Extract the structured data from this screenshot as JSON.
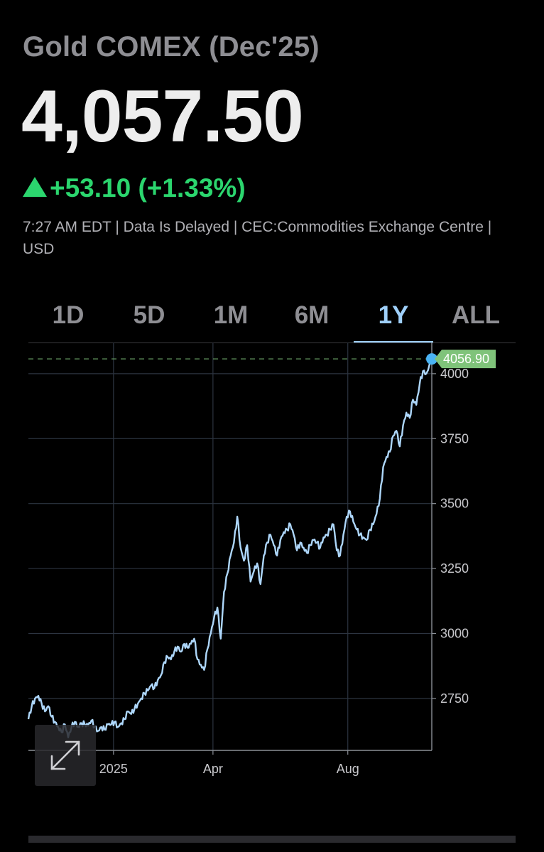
{
  "header": {
    "title": "Gold COMEX (Dec'25)",
    "price": "4,057.50",
    "change": "+53.10 (+1.33%)",
    "meta": "7:27 AM EDT | Data Is Delayed | CEC:Commodities Exchange Centre | USD"
  },
  "tabs": [
    {
      "label": "1D"
    },
    {
      "label": "5D"
    },
    {
      "label": "1M"
    },
    {
      "label": "6M"
    },
    {
      "label": "1Y",
      "active": true
    },
    {
      "label": "ALL"
    }
  ],
  "colors": {
    "positive": "#2bd66e",
    "line": "#aed7fb",
    "accent": "#9fd0fa",
    "marker": "#4ab3f4",
    "price_label_bg": "#7fc37a"
  },
  "chart_data": {
    "type": "line",
    "ylim": [
      2550,
      4120
    ],
    "yticks": [
      2750,
      3000,
      3250,
      3500,
      3750,
      4000
    ],
    "ytick_labels": [
      "2750",
      "3000",
      "3250",
      "3500",
      "3750",
      "4000"
    ],
    "x_ticks": [
      {
        "label": "2025",
        "date": "2025-01-01"
      },
      {
        "label": "Apr",
        "date": "2025-04-01"
      },
      {
        "label": "Aug",
        "date": "2025-08-01"
      }
    ],
    "xlim": [
      "2024-10-16",
      "2025-10-16"
    ],
    "last_value_label": "4056.90",
    "last_value": 4056.9,
    "grid": true,
    "series": [
      {
        "points": [
          [
            "2024-10-16",
            2670
          ],
          [
            "2024-10-19",
            2720
          ],
          [
            "2024-10-22",
            2750
          ],
          [
            "2024-10-25",
            2760
          ],
          [
            "2024-10-28",
            2730
          ],
          [
            "2024-10-31",
            2700
          ],
          [
            "2024-11-03",
            2720
          ],
          [
            "2024-11-06",
            2680
          ],
          [
            "2024-11-09",
            2660
          ],
          [
            "2024-11-12",
            2640
          ],
          [
            "2024-11-15",
            2620
          ],
          [
            "2024-11-18",
            2650
          ],
          [
            "2024-11-21",
            2600
          ],
          [
            "2024-11-24",
            2640
          ],
          [
            "2024-11-27",
            2660
          ],
          [
            "2024-11-30",
            2640
          ],
          [
            "2024-12-03",
            2655
          ],
          [
            "2024-12-06",
            2650
          ],
          [
            "2024-12-09",
            2645
          ],
          [
            "2024-12-12",
            2665
          ],
          [
            "2024-12-15",
            2640
          ],
          [
            "2024-12-18",
            2625
          ],
          [
            "2024-12-21",
            2640
          ],
          [
            "2024-12-24",
            2630
          ],
          [
            "2024-12-27",
            2650
          ],
          [
            "2024-12-30",
            2650
          ],
          [
            "2025-01-02",
            2660
          ],
          [
            "2025-01-05",
            2640
          ],
          [
            "2025-01-08",
            2655
          ],
          [
            "2025-01-11",
            2670
          ],
          [
            "2025-01-14",
            2700
          ],
          [
            "2025-01-17",
            2690
          ],
          [
            "2025-01-20",
            2710
          ],
          [
            "2025-01-23",
            2730
          ],
          [
            "2025-01-26",
            2750
          ],
          [
            "2025-01-29",
            2770
          ],
          [
            "2025-02-01",
            2780
          ],
          [
            "2025-02-04",
            2800
          ],
          [
            "2025-02-07",
            2790
          ],
          [
            "2025-02-10",
            2820
          ],
          [
            "2025-02-13",
            2840
          ],
          [
            "2025-02-16",
            2890
          ],
          [
            "2025-02-19",
            2910
          ],
          [
            "2025-02-22",
            2900
          ],
          [
            "2025-02-25",
            2930
          ],
          [
            "2025-02-28",
            2950
          ],
          [
            "2025-03-03",
            2930
          ],
          [
            "2025-03-06",
            2960
          ],
          [
            "2025-03-09",
            2945
          ],
          [
            "2025-03-12",
            2960
          ],
          [
            "2025-03-15",
            2980
          ],
          [
            "2025-03-18",
            2900
          ],
          [
            "2025-03-21",
            2880
          ],
          [
            "2025-03-24",
            2860
          ],
          [
            "2025-03-27",
            2940
          ],
          [
            "2025-03-30",
            3000
          ],
          [
            "2025-04-02",
            3060
          ],
          [
            "2025-04-05",
            3100
          ],
          [
            "2025-04-08",
            2980
          ],
          [
            "2025-04-11",
            3160
          ],
          [
            "2025-04-14",
            3230
          ],
          [
            "2025-04-17",
            3300
          ],
          [
            "2025-04-20",
            3350
          ],
          [
            "2025-04-23",
            3450
          ],
          [
            "2025-04-26",
            3330
          ],
          [
            "2025-04-29",
            3280
          ],
          [
            "2025-05-02",
            3340
          ],
          [
            "2025-05-05",
            3200
          ],
          [
            "2025-05-08",
            3240
          ],
          [
            "2025-05-11",
            3270
          ],
          [
            "2025-05-14",
            3190
          ],
          [
            "2025-05-17",
            3300
          ],
          [
            "2025-05-20",
            3350
          ],
          [
            "2025-05-23",
            3380
          ],
          [
            "2025-05-26",
            3340
          ],
          [
            "2025-05-29",
            3300
          ],
          [
            "2025-06-01",
            3360
          ],
          [
            "2025-06-04",
            3390
          ],
          [
            "2025-06-07",
            3400
          ],
          [
            "2025-06-10",
            3420
          ],
          [
            "2025-06-13",
            3380
          ],
          [
            "2025-06-16",
            3320
          ],
          [
            "2025-06-19",
            3350
          ],
          [
            "2025-06-22",
            3330
          ],
          [
            "2025-06-25",
            3310
          ],
          [
            "2025-06-28",
            3340
          ],
          [
            "2025-07-01",
            3360
          ],
          [
            "2025-07-04",
            3350
          ],
          [
            "2025-07-07",
            3330
          ],
          [
            "2025-07-10",
            3370
          ],
          [
            "2025-07-13",
            3380
          ],
          [
            "2025-07-16",
            3400
          ],
          [
            "2025-07-19",
            3420
          ],
          [
            "2025-07-22",
            3320
          ],
          [
            "2025-07-25",
            3300
          ],
          [
            "2025-07-28",
            3380
          ],
          [
            "2025-07-31",
            3450
          ],
          [
            "2025-08-03",
            3470
          ],
          [
            "2025-08-06",
            3430
          ],
          [
            "2025-08-09",
            3400
          ],
          [
            "2025-08-12",
            3380
          ],
          [
            "2025-08-15",
            3370
          ],
          [
            "2025-08-18",
            3360
          ],
          [
            "2025-08-21",
            3400
          ],
          [
            "2025-08-24",
            3420
          ],
          [
            "2025-08-27",
            3460
          ],
          [
            "2025-08-30",
            3520
          ],
          [
            "2025-09-02",
            3640
          ],
          [
            "2025-09-05",
            3680
          ],
          [
            "2025-09-08",
            3700
          ],
          [
            "2025-09-11",
            3760
          ],
          [
            "2025-09-14",
            3780
          ],
          [
            "2025-09-17",
            3720
          ],
          [
            "2025-09-20",
            3800
          ],
          [
            "2025-09-23",
            3850
          ],
          [
            "2025-09-26",
            3830
          ],
          [
            "2025-09-29",
            3900
          ],
          [
            "2025-10-02",
            3880
          ],
          [
            "2025-10-05",
            3960
          ],
          [
            "2025-10-08",
            4010
          ],
          [
            "2025-10-11",
            4000
          ],
          [
            "2025-10-16",
            4056.9
          ]
        ]
      }
    ]
  }
}
